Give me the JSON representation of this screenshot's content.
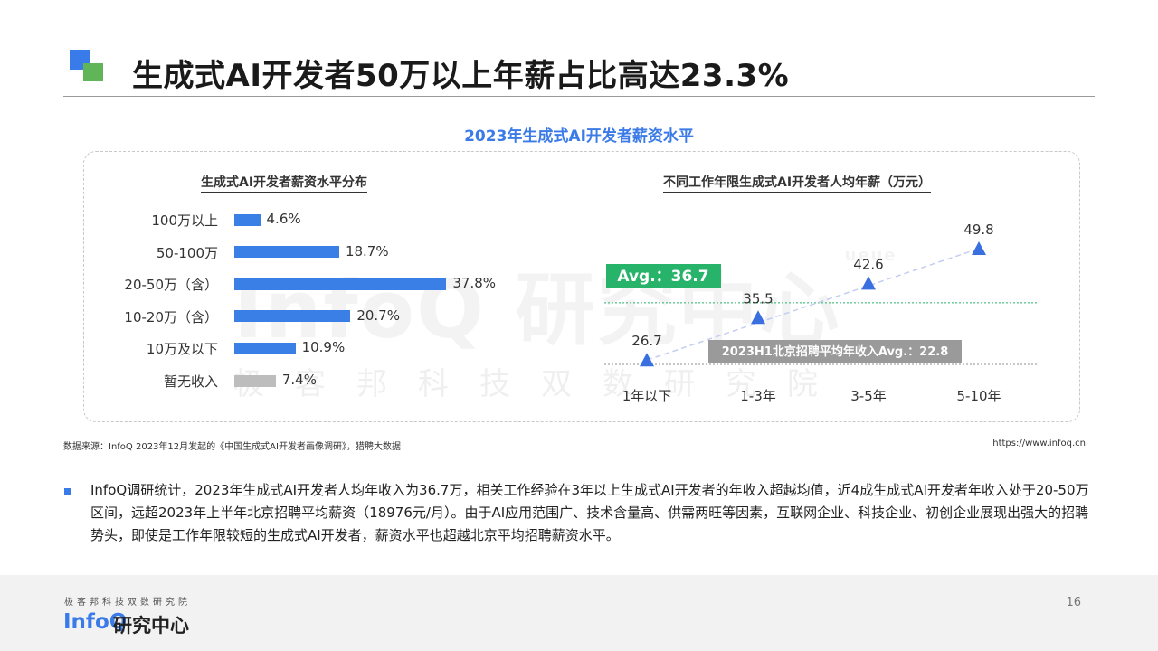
{
  "page": {
    "title": "生成式AI开发者50万以上年薪占比高达23.3%",
    "panel_title": "2023年生成式AI开发者薪资水平",
    "source": "数据来源：InfoQ 2023年12月发起的《中国生成式AI开发者画像调研》，猎聘大数据",
    "url": "https://www.infoq.cn",
    "paragraph": "InfoQ调研统计，2023年生成式AI开发者人均年收入为36.7万，相关工作经验在3年以上生成式AI开发者的年收入超越均值，近4成生成式AI开发者年收入处于20-50万区间，远超2023年上半年北京招聘平均薪资（18976元/月）。由于AI应用范围广、技术含量高、供需两旺等因素，互联网企业、科技企业、初创企业展现出强大的招聘势头，即使是工作年限较短的生成式AI开发者，薪资水平也超越北京平均招聘薪资水平。",
    "watermark_main": "InfoQ 研究中心",
    "watermark_tag": "ueue",
    "watermark_sub": "极客邦科技双数研究院",
    "footer_sub": "极客邦科技双数研究院",
    "footer_logo": "InfoQ",
    "footer_logo_cn": "研究中心",
    "page_number": "16",
    "accent_color": "#3b7be8",
    "green_color": "#5fb557"
  },
  "chart_data": [
    {
      "type": "bar",
      "orientation": "horizontal",
      "title": "生成式AI开发者薪资水平分布",
      "categories": [
        "100万以上",
        "50-100万",
        "20-50万（含）",
        "10-20万（含）",
        "10万及以下",
        "暂无收入"
      ],
      "values": [
        4.6,
        18.7,
        37.8,
        20.7,
        10.9,
        7.4
      ],
      "value_labels": [
        "4.6%",
        "18.7%",
        "37.8%",
        "20.7%",
        "10.9%",
        "7.4%"
      ],
      "unit": "%",
      "colors": [
        "#3a7fe6",
        "#3a7fe6",
        "#3a7fe6",
        "#3a7fe6",
        "#3a7fe6",
        "#bdbdbd"
      ]
    },
    {
      "type": "scatter",
      "title": "不同工作年限生成式AI开发者人均年薪（万元）",
      "categories": [
        "1年以下",
        "1-3年",
        "3-5年",
        "5-10年"
      ],
      "values": [
        26.7,
        35.5,
        42.6,
        49.8
      ],
      "marker": "triangle",
      "trendline": "dashed",
      "ylim": [
        22.8,
        49.8
      ],
      "reference_lines": [
        {
          "label": "Avg.：36.7",
          "value": 36.7,
          "color": "#27b36a",
          "style": "dotted"
        },
        {
          "label": "2023H1北京招聘平均年收入Avg.：22.8",
          "value": 22.8,
          "color": "#8f8f8f",
          "style": "dotted"
        }
      ],
      "marker_color": "#3a6fe0"
    }
  ]
}
